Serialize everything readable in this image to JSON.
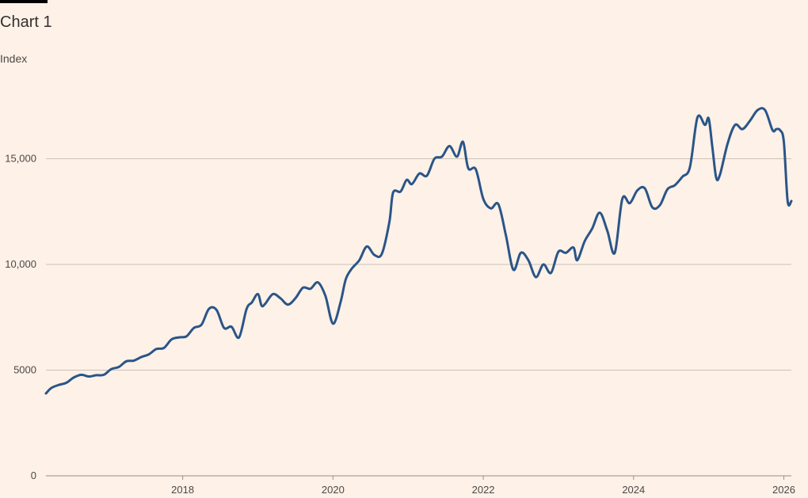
{
  "page": {
    "title": "Chart 1",
    "unit": "Index"
  },
  "colors": {
    "background": "#fdf1e8",
    "line": "#2a5587",
    "grid": "#ccc1b7",
    "axis": "#999089",
    "text": "#4d4845"
  },
  "chart_data": {
    "type": "line",
    "title": "Chart 1",
    "ylabel": "Index",
    "xlabel": "",
    "xlim": [
      2016.18,
      2026.1
    ],
    "ylim": [
      0,
      17500
    ],
    "grid": true,
    "y_ticks": [
      0,
      5000,
      10000,
      15000
    ],
    "y_tick_labels": [
      "0",
      "5000",
      "10,000",
      "15,000"
    ],
    "x_ticks": [
      2018,
      2020,
      2022,
      2024,
      2026
    ],
    "x_tick_labels": [
      "2018",
      "2020",
      "2022",
      "2024",
      "2026"
    ],
    "series": [
      {
        "color": "#2a5587",
        "x": [
          2016.18,
          2016.25,
          2016.35,
          2016.45,
          2016.55,
          2016.65,
          2016.75,
          2016.85,
          2016.95,
          2017.05,
          2017.15,
          2017.25,
          2017.35,
          2017.45,
          2017.55,
          2017.65,
          2017.75,
          2017.85,
          2017.95,
          2018.05,
          2018.15,
          2018.25,
          2018.35,
          2018.45,
          2018.55,
          2018.65,
          2018.75,
          2018.85,
          2018.92,
          2019.0,
          2019.05,
          2019.1,
          2019.2,
          2019.3,
          2019.4,
          2019.5,
          2019.6,
          2019.7,
          2019.8,
          2019.9,
          2020.0,
          2020.1,
          2020.17,
          2020.25,
          2020.35,
          2020.45,
          2020.55,
          2020.65,
          2020.75,
          2020.8,
          2020.9,
          2020.98,
          2021.05,
          2021.15,
          2021.25,
          2021.35,
          2021.45,
          2021.55,
          2021.65,
          2021.73,
          2021.8,
          2021.9,
          2022.0,
          2022.1,
          2022.2,
          2022.3,
          2022.4,
          2022.5,
          2022.6,
          2022.7,
          2022.8,
          2022.9,
          2023.0,
          2023.1,
          2023.2,
          2023.25,
          2023.35,
          2023.45,
          2023.55,
          2023.65,
          2023.75,
          2023.85,
          2023.95,
          2024.05,
          2024.15,
          2024.25,
          2024.35,
          2024.45,
          2024.55,
          2024.65,
          2024.75,
          2024.85,
          2024.95,
          2025.0,
          2025.05,
          2025.1,
          2025.15,
          2025.25,
          2025.35,
          2025.45,
          2025.55,
          2025.65,
          2025.75,
          2025.85,
          2025.9,
          2025.95,
          2026.0,
          2026.05,
          2026.1
        ],
        "y": [
          3900,
          4150,
          4300,
          4400,
          4650,
          4780,
          4700,
          4760,
          4780,
          5050,
          5150,
          5420,
          5450,
          5620,
          5750,
          6000,
          6050,
          6450,
          6550,
          6600,
          7000,
          7150,
          7900,
          7850,
          7000,
          7050,
          6550,
          7900,
          8200,
          8600,
          8050,
          8150,
          8600,
          8400,
          8100,
          8400,
          8900,
          8850,
          9150,
          8500,
          7200,
          8200,
          9300,
          9800,
          10200,
          10850,
          10450,
          10500,
          12000,
          13400,
          13450,
          14000,
          13800,
          14300,
          14200,
          15000,
          15100,
          15600,
          15100,
          15800,
          14550,
          14500,
          13100,
          12650,
          12850,
          11400,
          9750,
          10550,
          10200,
          9400,
          10000,
          9600,
          10600,
          10550,
          10800,
          10200,
          11100,
          11700,
          12450,
          11600,
          10550,
          13100,
          12900,
          13500,
          13600,
          12700,
          12800,
          13550,
          13750,
          14150,
          14600,
          16950,
          16600,
          16900,
          15500,
          14100,
          14250,
          15700,
          16600,
          16400,
          16800,
          17300,
          17300,
          16350,
          16400,
          16350,
          15800,
          13000,
          13000
        ]
      }
    ]
  }
}
